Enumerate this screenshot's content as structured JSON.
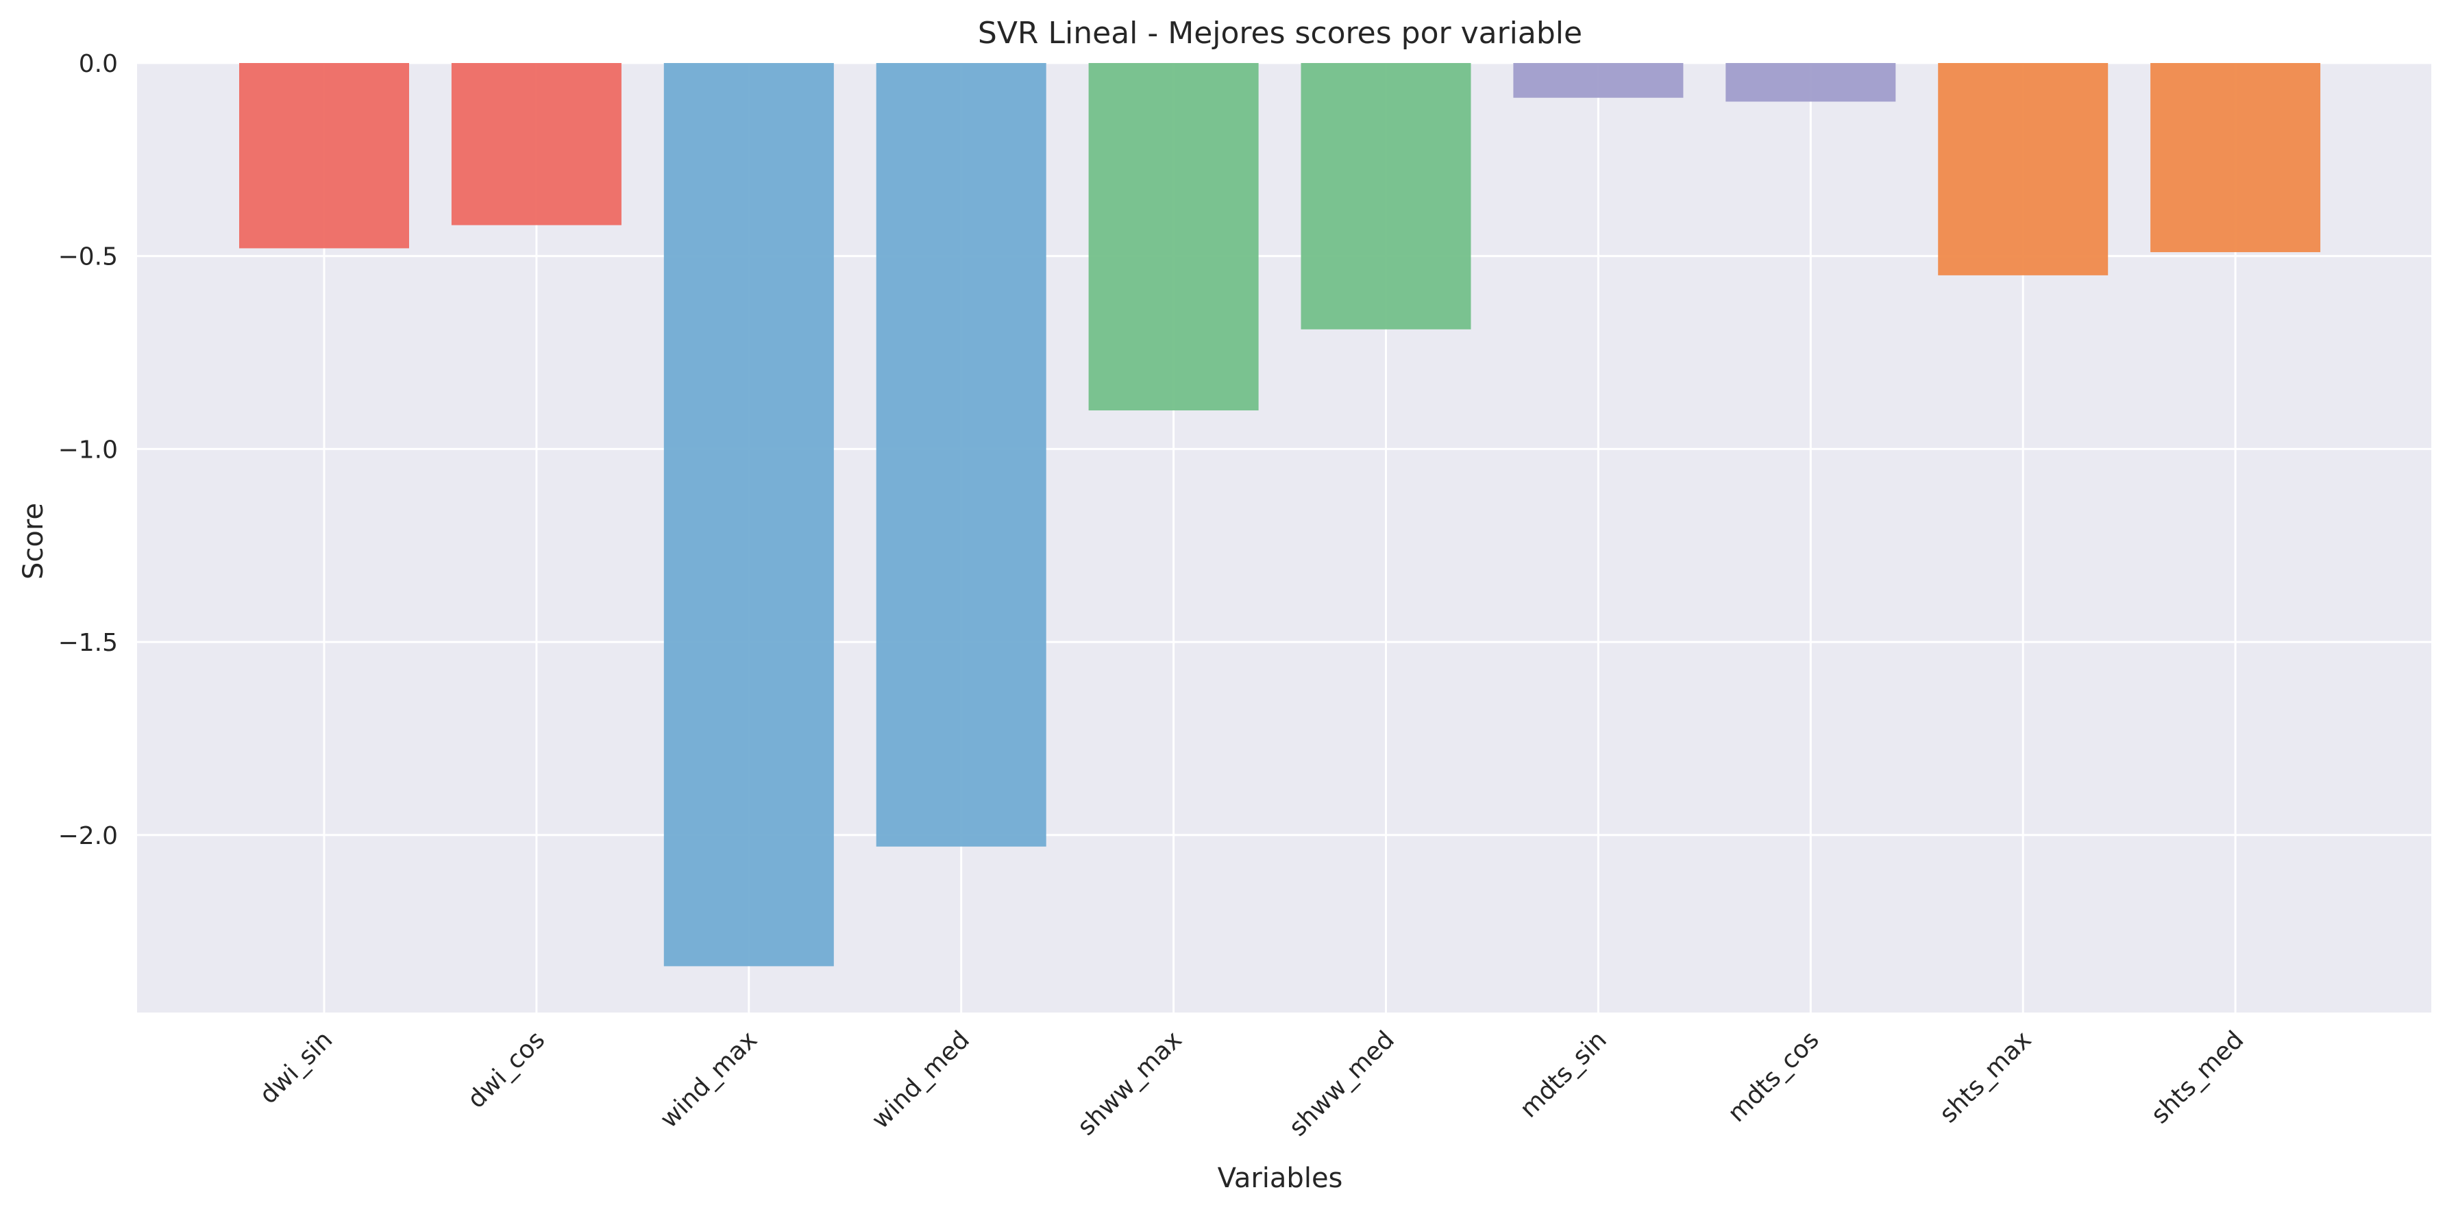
{
  "chart_data": {
    "type": "bar",
    "title": "SVR Lineal - Mejores scores por variable",
    "xlabel": "Variables",
    "ylabel": "Score",
    "categories": [
      "dwi_sin",
      "dwi_cos",
      "wind_max",
      "wind_med",
      "shww_max",
      "shww_med",
      "mdts_sin",
      "mdts_cos",
      "shts_max",
      "shts_med"
    ],
    "values": [
      -0.48,
      -0.42,
      -2.34,
      -2.03,
      -0.9,
      -0.69,
      -0.09,
      -0.1,
      -0.55,
      -0.49
    ],
    "colors": [
      "#ee6b63",
      "#ee6b63",
      "#72acd3",
      "#72acd3",
      "#74c08a",
      "#74c08a",
      "#a09dcb",
      "#a09dcb",
      "#f08a4b",
      "#f08a4b"
    ],
    "ylim": [
      -2.46,
      0.0
    ],
    "yticks": [
      0.0,
      -0.5,
      -1.0,
      -1.5,
      -2.0
    ],
    "ytick_labels": [
      "0.0",
      "−0.5",
      "−1.0",
      "−1.5",
      "−2.0"
    ],
    "grid": true,
    "plot_background": "#eaeaf2",
    "grid_color": "#ffffff"
  }
}
